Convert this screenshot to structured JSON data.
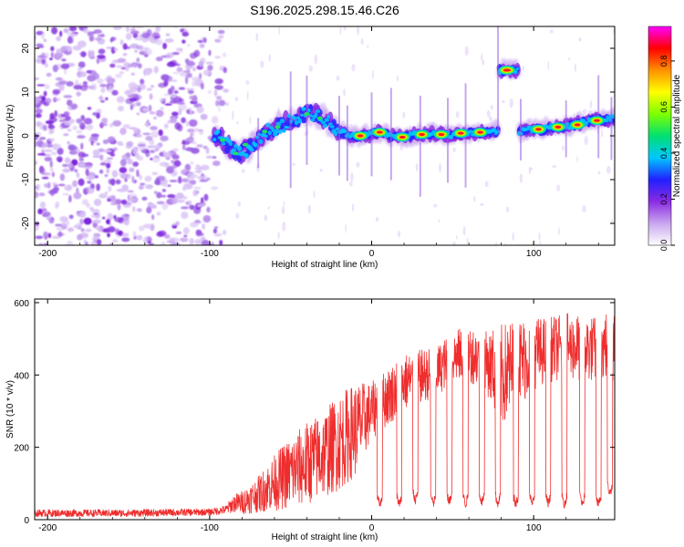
{
  "title": "S196.2025.298.15.46.C26",
  "chart_data": [
    {
      "type": "heatmap",
      "panel": "spectrogram",
      "xlabel": "Height of straight line (km)",
      "ylabel": "Frequency (Hz)",
      "xlim": [
        -208,
        150
      ],
      "ylim": [
        -25,
        25
      ],
      "x_ticks": [
        -200,
        -100,
        0,
        100
      ],
      "y_ticks": [
        -20,
        -10,
        0,
        10,
        20
      ],
      "x_tick_labels": [
        "-200",
        "-100",
        "0",
        "100"
      ],
      "y_tick_labels": [
        "-20",
        "-10",
        "0",
        "10",
        "20"
      ],
      "noise_region_x": [
        -208,
        -95
      ],
      "ridge": {
        "x": [
          -97,
          -92,
          -86,
          -82,
          -76,
          -70,
          -64,
          -58,
          -52,
          -46,
          -40,
          -34,
          -30,
          -26,
          -20,
          -16,
          -12,
          -6,
          0,
          6,
          12,
          18,
          24,
          30,
          36,
          42,
          48,
          54,
          60,
          66,
          72,
          76,
          80,
          84,
          88,
          92,
          96,
          100,
          106,
          112,
          118,
          124,
          130,
          136,
          142,
          148
        ],
        "y": [
          0,
          -1,
          -3,
          -4,
          -3,
          -1,
          1,
          2,
          3,
          4,
          5,
          5,
          4,
          3,
          1,
          0.5,
          0,
          0,
          0.5,
          0.8,
          0,
          -0.3,
          0.2,
          0.3,
          0.4,
          0.3,
          0.3,
          0.5,
          0.6,
          0.6,
          0.8,
          1,
          15,
          15,
          15,
          1,
          1.5,
          1.5,
          1.5,
          2,
          2,
          2.5,
          3,
          3.5,
          3.5,
          4
        ]
      },
      "hot_segments": [
        {
          "x": [
            -10,
            -4
          ],
          "y": 0
        },
        {
          "x": [
            2,
            8
          ],
          "y": 0.8
        },
        {
          "x": [
            16,
            22
          ],
          "y": -0.3
        },
        {
          "x": [
            28,
            34
          ],
          "y": 0.3
        },
        {
          "x": [
            40,
            46
          ],
          "y": 0.3
        },
        {
          "x": [
            52,
            58
          ],
          "y": 0.6
        },
        {
          "x": [
            64,
            70
          ],
          "y": 0.8
        },
        {
          "x": [
            80,
            87
          ],
          "y": 15
        },
        {
          "x": [
            100,
            106
          ],
          "y": 1.5
        },
        {
          "x": [
            112,
            118
          ],
          "y": 2
        },
        {
          "x": [
            124,
            130
          ],
          "y": 2.5
        },
        {
          "x": [
            136,
            142
          ],
          "y": 3.5
        }
      ],
      "colorbar": {
        "label": "Normalized spectral amplitude",
        "range": [
          0,
          0.95
        ],
        "ticks": [
          0.0,
          0.2,
          0.4,
          0.6,
          0.8
        ],
        "tick_labels": [
          "0.0",
          "0.2",
          "0.4",
          "0.6",
          "0.8"
        ],
        "colors": [
          "#ffffff",
          "#c9a6ef",
          "#8a2be2",
          "#2020ff",
          "#00c8ff",
          "#00e070",
          "#7fff00",
          "#ffff00",
          "#ff9000",
          "#ff0000",
          "#ff00ff"
        ]
      }
    },
    {
      "type": "line",
      "panel": "snr",
      "xlabel": "Height of straight line (km)",
      "ylabel": "SNR (10 * v/v)",
      "xlim": [
        -208,
        150
      ],
      "ylim": [
        0,
        610
      ],
      "x_ticks": [
        -200,
        -100,
        0,
        100
      ],
      "y_ticks": [
        0,
        200,
        400,
        600
      ],
      "x_tick_labels": [
        "-200",
        "-100",
        "0",
        "100"
      ],
      "y_tick_labels": [
        "0",
        "200",
        "400",
        "600"
      ],
      "color": "#ef2d2d",
      "envelope": {
        "x": [
          -208,
          -180,
          -150,
          -120,
          -100,
          -90,
          -85,
          -80,
          -70,
          -60,
          -50,
          -40,
          -30,
          -20,
          -10,
          0,
          10,
          20,
          30,
          40,
          50,
          60,
          70,
          80,
          90,
          100,
          110,
          120,
          130,
          140,
          150
        ],
        "lo": [
          8,
          8,
          8,
          10,
          12,
          15,
          20,
          15,
          20,
          25,
          30,
          40,
          60,
          80,
          120,
          220,
          260,
          300,
          320,
          340,
          380,
          380,
          360,
          250,
          300,
          360,
          380,
          390,
          380,
          380,
          380
        ],
        "hi": [
          28,
          28,
          28,
          30,
          30,
          40,
          70,
          80,
          120,
          180,
          230,
          270,
          300,
          350,
          380,
          380,
          420,
          460,
          470,
          480,
          520,
          540,
          520,
          540,
          560,
          560,
          560,
          570,
          570,
          560,
          600
        ]
      },
      "dips": [
        {
          "x": 5,
          "y": 30
        },
        {
          "x": 17,
          "y": 30
        },
        {
          "x": 27,
          "y": 40
        },
        {
          "x": 38,
          "y": 30
        },
        {
          "x": 48,
          "y": 35
        },
        {
          "x": 58,
          "y": 30
        },
        {
          "x": 68,
          "y": 35
        },
        {
          "x": 78,
          "y": 30
        },
        {
          "x": 89,
          "y": 30
        },
        {
          "x": 99,
          "y": 30
        },
        {
          "x": 109,
          "y": 30
        },
        {
          "x": 119,
          "y": 30
        },
        {
          "x": 130,
          "y": 30
        },
        {
          "x": 140,
          "y": 30
        },
        {
          "x": 147,
          "y": 60
        }
      ]
    }
  ]
}
